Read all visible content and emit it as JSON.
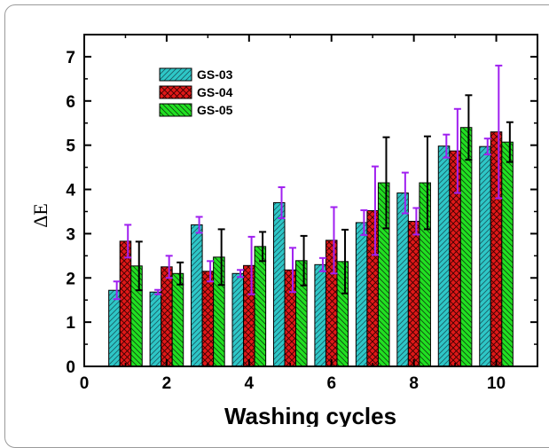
{
  "chart_data": {
    "type": "bar",
    "title": "",
    "xlabel": "Washing cycles",
    "ylabel": "ΔE",
    "xlim": [
      0,
      11
    ],
    "ylim": [
      0,
      7.5
    ],
    "xticks": [
      0,
      2,
      4,
      6,
      8,
      10
    ],
    "yticks": [
      0,
      1,
      2,
      3,
      4,
      5,
      6,
      7
    ],
    "grid": false,
    "legend_position": "top-left",
    "x": [
      1,
      2,
      3,
      4,
      5,
      6,
      7,
      8,
      9,
      10
    ],
    "series": [
      {
        "name": "GS-03",
        "color": "#2ec7c7",
        "pattern": "diagonal-stripes",
        "errorbar_color": "#a020f0",
        "values": [
          1.72,
          1.68,
          3.2,
          2.1,
          3.7,
          2.3,
          3.25,
          3.92,
          4.98,
          4.97
        ],
        "errors": [
          0.2,
          0.05,
          0.18,
          0.08,
          0.35,
          0.15,
          0.28,
          0.46,
          0.26,
          0.18
        ]
      },
      {
        "name": "GS-04",
        "color": "#e01818",
        "pattern": "crosshatch",
        "errorbar_color": "#a020f0",
        "values": [
          2.83,
          2.25,
          2.15,
          2.28,
          2.18,
          2.85,
          3.52,
          3.28,
          4.87,
          5.3
        ],
        "errors": [
          0.37,
          0.25,
          0.23,
          0.65,
          0.5,
          0.75,
          1.0,
          0.3,
          0.95,
          1.5
        ]
      },
      {
        "name": "GS-05",
        "color": "#22e022",
        "pattern": "diagonal-stripes",
        "errorbar_color": "#000000",
        "values": [
          2.27,
          2.1,
          2.47,
          2.71,
          2.39,
          2.37,
          4.15,
          4.15,
          5.4,
          5.07
        ],
        "errors": [
          0.55,
          0.25,
          0.63,
          0.33,
          0.56,
          0.72,
          1.03,
          1.05,
          0.73,
          0.45
        ]
      }
    ]
  }
}
